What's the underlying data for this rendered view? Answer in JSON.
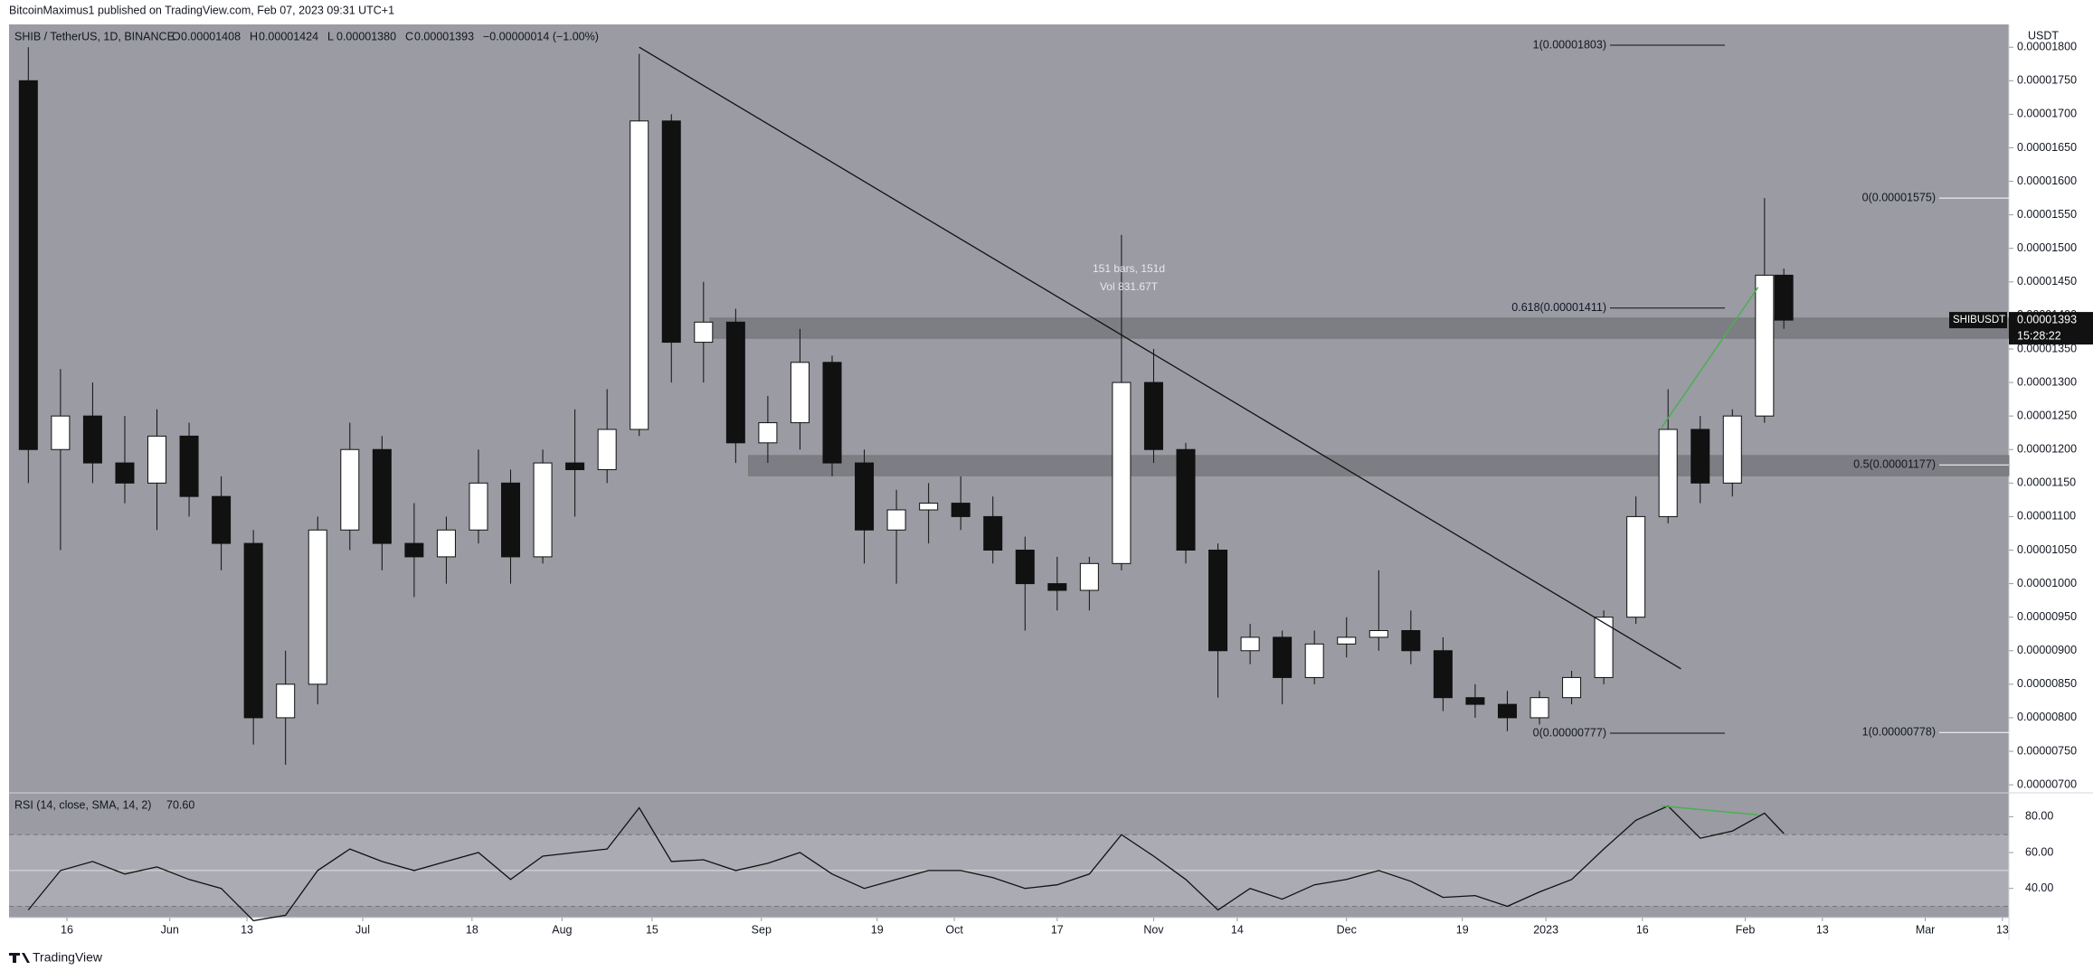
{
  "header": {
    "publisher": "BitcoinMaximus1 published on TradingView.com, Feb 07, 2023 09:31 UTC+1",
    "footer": "TradingView"
  },
  "chart_data": {
    "type": "candlestick",
    "symbol": "SHIB / TetherUS, 1D, BINANCE",
    "ohlc_text": [
      [
        "O",
        "0.00001408"
      ],
      [
        "H",
        "0.00001424"
      ],
      [
        "L",
        "0.00001380"
      ],
      [
        "C",
        "0.00001393"
      ]
    ],
    "change_text": "−0.00000014 (−1.00%)",
    "currency": "USDT",
    "background": "#9a9ba3",
    "up_color": "#ffffff",
    "down_color": "#111111",
    "x": [
      "2022-05-10",
      "2022-05-15",
      "2022-05-20",
      "2022-05-25",
      "2022-05-30",
      "2022-06-04",
      "2022-06-09",
      "2022-06-14",
      "2022-06-19",
      "2022-06-24",
      "2022-06-29",
      "2022-07-04",
      "2022-07-09",
      "2022-07-14",
      "2022-07-19",
      "2022-07-24",
      "2022-07-29",
      "2022-08-03",
      "2022-08-08",
      "2022-08-13",
      "2022-08-18",
      "2022-08-23",
      "2022-08-28",
      "2022-09-02",
      "2022-09-07",
      "2022-09-12",
      "2022-09-17",
      "2022-09-22",
      "2022-09-27",
      "2022-10-02",
      "2022-10-07",
      "2022-10-12",
      "2022-10-17",
      "2022-10-22",
      "2022-10-27",
      "2022-11-01",
      "2022-11-06",
      "2022-11-11",
      "2022-11-16",
      "2022-11-21",
      "2022-11-26",
      "2022-12-01",
      "2022-12-06",
      "2022-12-11",
      "2022-12-16",
      "2022-12-21",
      "2022-12-26",
      "2022-12-31",
      "2023-01-05",
      "2023-01-10",
      "2023-01-15",
      "2023-01-20",
      "2023-01-25",
      "2023-01-30",
      "2023-02-04",
      "2023-02-07"
    ],
    "open": [
      1.75e-05,
      1.2e-05,
      1.25e-05,
      1.18e-05,
      1.15e-05,
      1.22e-05,
      1.13e-05,
      1.06e-05,
      8e-06,
      8.5e-06,
      1.08e-05,
      1.2e-05,
      1.06e-05,
      1.04e-05,
      1.08e-05,
      1.15e-05,
      1.04e-05,
      1.18e-05,
      1.17e-05,
      1.23e-05,
      1.69e-05,
      1.36e-05,
      1.39e-05,
      1.21e-05,
      1.24e-05,
      1.33e-05,
      1.18e-05,
      1.08e-05,
      1.11e-05,
      1.12e-05,
      1.1e-05,
      1.05e-05,
      1e-05,
      9.9e-06,
      1.03e-05,
      1.3e-05,
      1.2e-05,
      1.05e-05,
      9e-06,
      9.2e-06,
      8.6e-06,
      9.1e-06,
      9.2e-06,
      9.3e-06,
      9e-06,
      8.3e-06,
      8.2e-06,
      8e-06,
      8.3e-06,
      8.6e-06,
      9.5e-06,
      1.1e-05,
      1.23e-05,
      1.15e-05,
      1.25e-05,
      1.46e-05
    ],
    "high": [
      1.8e-05,
      1.32e-05,
      1.3e-05,
      1.25e-05,
      1.26e-05,
      1.24e-05,
      1.16e-05,
      1.08e-05,
      9e-06,
      1.1e-05,
      1.24e-05,
      1.22e-05,
      1.12e-05,
      1.1e-05,
      1.2e-05,
      1.17e-05,
      1.2e-05,
      1.26e-05,
      1.29e-05,
      1.79e-05,
      1.7e-05,
      1.45e-05,
      1.41e-05,
      1.28e-05,
      1.38e-05,
      1.34e-05,
      1.2e-05,
      1.14e-05,
      1.15e-05,
      1.16e-05,
      1.13e-05,
      1.07e-05,
      1.04e-05,
      1.04e-05,
      1.52e-05,
      1.35e-05,
      1.21e-05,
      1.06e-05,
      9.4e-06,
      9.3e-06,
      9.3e-06,
      9.5e-06,
      1.02e-05,
      9.6e-06,
      9.2e-06,
      8.5e-06,
      8.4e-06,
      8.4e-06,
      8.7e-06,
      9.6e-06,
      1.13e-05,
      1.29e-05,
      1.25e-05,
      1.26e-05,
      1.575e-05,
      1.47e-05
    ],
    "low": [
      1.15e-05,
      1.05e-05,
      1.15e-05,
      1.12e-05,
      1.08e-05,
      1.1e-05,
      1.02e-05,
      7.6e-06,
      7.3e-06,
      8.2e-06,
      1.05e-05,
      1.02e-05,
      9.8e-06,
      1e-05,
      1.06e-05,
      1e-05,
      1.03e-05,
      1.1e-05,
      1.15e-05,
      1.22e-05,
      1.3e-05,
      1.3e-05,
      1.18e-05,
      1.18e-05,
      1.2e-05,
      1.16e-05,
      1.03e-05,
      1e-05,
      1.06e-05,
      1.08e-05,
      1.03e-05,
      9.3e-06,
      9.6e-06,
      9.6e-06,
      1.02e-05,
      1.18e-05,
      1.03e-05,
      8.3e-06,
      8.8e-06,
      8.2e-06,
      8.5e-06,
      8.9e-06,
      9e-06,
      8.8e-06,
      8.1e-06,
      8e-06,
      7.8e-06,
      7.9e-06,
      8.2e-06,
      8.5e-06,
      9.4e-06,
      1.09e-05,
      1.12e-05,
      1.13e-05,
      1.24e-05,
      1.38e-05
    ],
    "close": [
      1.2e-05,
      1.25e-05,
      1.18e-05,
      1.15e-05,
      1.22e-05,
      1.13e-05,
      1.06e-05,
      8e-06,
      8.5e-06,
      1.08e-05,
      1.2e-05,
      1.06e-05,
      1.04e-05,
      1.08e-05,
      1.15e-05,
      1.04e-05,
      1.18e-05,
      1.17e-05,
      1.23e-05,
      1.69e-05,
      1.36e-05,
      1.39e-05,
      1.21e-05,
      1.24e-05,
      1.33e-05,
      1.18e-05,
      1.08e-05,
      1.11e-05,
      1.12e-05,
      1.1e-05,
      1.05e-05,
      1e-05,
      9.9e-06,
      1.03e-05,
      1.3e-05,
      1.2e-05,
      1.05e-05,
      9e-06,
      9.2e-06,
      8.6e-06,
      9.1e-06,
      9.2e-06,
      9.3e-06,
      9e-06,
      8.3e-06,
      8.2e-06,
      8e-06,
      8.3e-06,
      8.6e-06,
      9.5e-06,
      1.1e-05,
      1.23e-05,
      1.15e-05,
      1.25e-05,
      1.46e-05,
      1.393e-05
    ],
    "xlim": [
      "2022-05-07",
      "2023-03-14"
    ],
    "xticks": [
      {
        "value": "2022-05-16",
        "label": "16"
      },
      {
        "value": "2022-06-01",
        "label": "Jun"
      },
      {
        "value": "2022-06-13",
        "label": "13"
      },
      {
        "value": "2022-07-01",
        "label": "Jul"
      },
      {
        "value": "2022-07-18",
        "label": "18"
      },
      {
        "value": "2022-08-01",
        "label": "Aug"
      },
      {
        "value": "2022-08-15",
        "label": "15"
      },
      {
        "value": "2022-09-01",
        "label": "Sep"
      },
      {
        "value": "2022-09-19",
        "label": "19"
      },
      {
        "value": "2022-10-01",
        "label": "Oct"
      },
      {
        "value": "2022-10-17",
        "label": "17"
      },
      {
        "value": "2022-11-01",
        "label": "Nov"
      },
      {
        "value": "2022-11-14",
        "label": "14"
      },
      {
        "value": "2022-12-01",
        "label": "Dec"
      },
      {
        "value": "2022-12-19",
        "label": "19"
      },
      {
        "value": "2023-01-01",
        "label": "2023"
      },
      {
        "value": "2023-01-16",
        "label": "16"
      },
      {
        "value": "2023-02-01",
        "label": "Feb"
      },
      {
        "value": "2023-02-13",
        "label": "13"
      },
      {
        "value": "2023-03-01",
        "label": "Mar"
      },
      {
        "value": "2023-03-13",
        "label": "13"
      }
    ],
    "ylim": [
      6.88e-06,
      1.834e-05
    ],
    "yticks": [
      {
        "value": 7e-06,
        "label": "0.00000700"
      },
      {
        "value": 7.5e-06,
        "label": "0.00000750"
      },
      {
        "value": 8e-06,
        "label": "0.00000800"
      },
      {
        "value": 8.5e-06,
        "label": "0.00000850"
      },
      {
        "value": 9e-06,
        "label": "0.00000900"
      },
      {
        "value": 9.5e-06,
        "label": "0.00000950"
      },
      {
        "value": 1e-05,
        "label": "0.00001000"
      },
      {
        "value": 1.05e-05,
        "label": "0.00001050"
      },
      {
        "value": 1.1e-05,
        "label": "0.00001100"
      },
      {
        "value": 1.15e-05,
        "label": "0.00001150"
      },
      {
        "value": 1.2e-05,
        "label": "0.00001200"
      },
      {
        "value": 1.25e-05,
        "label": "0.00001250"
      },
      {
        "value": 1.3e-05,
        "label": "0.00001300"
      },
      {
        "value": 1.35e-05,
        "label": "0.00001350"
      },
      {
        "value": 1.4e-05,
        "label": "0.00001400"
      },
      {
        "value": 1.45e-05,
        "label": "0.00001450"
      },
      {
        "value": 1.5e-05,
        "label": "0.00001500"
      },
      {
        "value": 1.55e-05,
        "label": "0.00001550"
      },
      {
        "value": 1.6e-05,
        "label": "0.00001600"
      },
      {
        "value": 1.65e-05,
        "label": "0.00001650"
      },
      {
        "value": 1.7e-05,
        "label": "0.00001700"
      },
      {
        "value": 1.75e-05,
        "label": "0.00001750"
      },
      {
        "value": 1.8e-05,
        "label": "0.00001800"
      }
    ],
    "price_tag": {
      "symbol": "SHIBUSDT",
      "value": 1.393e-05,
      "label": "0.00001393",
      "countdown": "15:28:22"
    },
    "fib_levels": [
      {
        "value": 1.803e-05,
        "label": "1(0.00001803)"
      },
      {
        "value": 1.575e-05,
        "label": "0(0.00001575)"
      },
      {
        "value": 1.411e-05,
        "label": "0.618(0.00001411)"
      },
      {
        "value": 1.177e-05,
        "label": "0.5(0.00001177)"
      },
      {
        "value": 7.77e-06,
        "label": "0(0.00000777)"
      },
      {
        "value": 7.78e-06,
        "label": "1(0.00000778)"
      }
    ],
    "zones": [
      {
        "x": "2022-08-24",
        "values": [
          1.366e-05,
          1.396e-05
        ]
      },
      {
        "x": "2022-08-30",
        "values": [
          1.161e-05,
          1.191e-05
        ]
      }
    ],
    "trendline": {
      "x": [
        "2022-08-13",
        "2023-01-22"
      ],
      "values": [
        1.8e-05,
        8.73e-06
      ],
      "color": "#111111"
    },
    "divergence": {
      "x": [
        "2023-01-19",
        "2023-02-03"
      ],
      "values": [
        1.233e-05,
        1.442e-05
      ],
      "rsi": [
        86,
        81
      ],
      "color": "#4caf50"
    },
    "range_note": [
      "151 bars, 151d",
      "Vol 831.67T"
    ],
    "rsi": {
      "label": "RSI (14, close, SMA, 14, 2)",
      "last": "70.60",
      "color": "#111111",
      "values": [
        28,
        50,
        55,
        48,
        52,
        45,
        40,
        22,
        25,
        50,
        62,
        55,
        50,
        55,
        60,
        45,
        58,
        60,
        62,
        85,
        55,
        56,
        50,
        54,
        60,
        48,
        40,
        45,
        50,
        50,
        46,
        40,
        42,
        48,
        70,
        58,
        45,
        28,
        40,
        34,
        42,
        45,
        50,
        44,
        35,
        36,
        30,
        38,
        45,
        62,
        78,
        86,
        68,
        72,
        82,
        70.6
      ],
      "ylim": [
        23.7,
        93.3
      ],
      "band": [
        30,
        70
      ],
      "mid": 50,
      "yticks": [
        {
          "value": 40,
          "label": "40.00"
        },
        {
          "value": 60,
          "label": "60.00"
        },
        {
          "value": 80,
          "label": "80.00"
        }
      ]
    }
  }
}
